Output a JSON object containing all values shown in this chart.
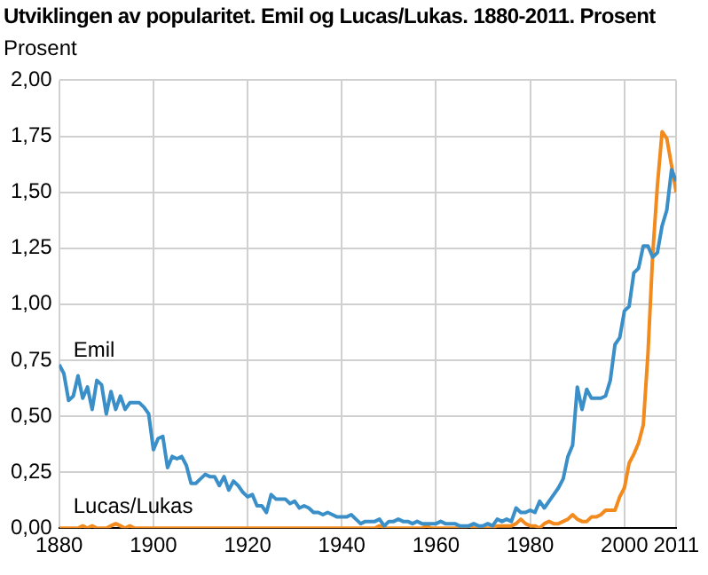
{
  "chart_data": {
    "type": "line",
    "title": "Utviklingen av popularitet. Emil og Lucas/Lukas. 1880-2011. Prosent",
    "ylabel": "Prosent",
    "x": [
      1880,
      1881,
      1882,
      1883,
      1884,
      1885,
      1886,
      1887,
      1888,
      1889,
      1890,
      1891,
      1892,
      1893,
      1894,
      1895,
      1896,
      1897,
      1898,
      1899,
      1900,
      1901,
      1902,
      1903,
      1904,
      1905,
      1906,
      1907,
      1908,
      1909,
      1910,
      1911,
      1912,
      1913,
      1914,
      1915,
      1916,
      1917,
      1918,
      1919,
      1920,
      1921,
      1922,
      1923,
      1924,
      1925,
      1926,
      1927,
      1928,
      1929,
      1930,
      1931,
      1932,
      1933,
      1934,
      1935,
      1936,
      1937,
      1938,
      1939,
      1940,
      1941,
      1942,
      1943,
      1944,
      1945,
      1946,
      1947,
      1948,
      1949,
      1950,
      1951,
      1952,
      1953,
      1954,
      1955,
      1956,
      1957,
      1958,
      1959,
      1960,
      1961,
      1962,
      1963,
      1964,
      1965,
      1966,
      1967,
      1968,
      1969,
      1970,
      1971,
      1972,
      1973,
      1974,
      1975,
      1976,
      1977,
      1978,
      1979,
      1980,
      1981,
      1982,
      1983,
      1984,
      1985,
      1986,
      1987,
      1988,
      1989,
      1990,
      1991,
      1992,
      1993,
      1994,
      1995,
      1996,
      1997,
      1998,
      1999,
      2000,
      2001,
      2002,
      2003,
      2004,
      2005,
      2006,
      2007,
      2008,
      2009,
      2010,
      2011
    ],
    "series": [
      {
        "name": "Emil",
        "color": "#3a8fc8",
        "values": [
          0.73,
          0.69,
          0.57,
          0.59,
          0.68,
          0.58,
          0.63,
          0.53,
          0.66,
          0.64,
          0.51,
          0.61,
          0.53,
          0.59,
          0.53,
          0.56,
          0.56,
          0.56,
          0.54,
          0.51,
          0.35,
          0.4,
          0.41,
          0.27,
          0.32,
          0.31,
          0.32,
          0.28,
          0.2,
          0.2,
          0.22,
          0.24,
          0.23,
          0.23,
          0.19,
          0.23,
          0.17,
          0.21,
          0.19,
          0.16,
          0.14,
          0.15,
          0.1,
          0.1,
          0.07,
          0.15,
          0.13,
          0.13,
          0.13,
          0.11,
          0.12,
          0.09,
          0.1,
          0.09,
          0.07,
          0.07,
          0.06,
          0.07,
          0.06,
          0.05,
          0.05,
          0.05,
          0.06,
          0.04,
          0.02,
          0.03,
          0.03,
          0.03,
          0.04,
          0.01,
          0.03,
          0.03,
          0.04,
          0.03,
          0.03,
          0.02,
          0.03,
          0.02,
          0.02,
          0.02,
          0.02,
          0.03,
          0.02,
          0.02,
          0.02,
          0.01,
          0.01,
          0.01,
          0.02,
          0.01,
          0.01,
          0.02,
          0.01,
          0.04,
          0.03,
          0.04,
          0.03,
          0.09,
          0.07,
          0.07,
          0.08,
          0.07,
          0.12,
          0.09,
          0.12,
          0.15,
          0.18,
          0.22,
          0.32,
          0.37,
          0.63,
          0.53,
          0.62,
          0.58,
          0.58,
          0.58,
          0.59,
          0.66,
          0.82,
          0.85,
          0.97,
          0.99,
          1.14,
          1.16,
          1.26,
          1.26,
          1.21,
          1.23,
          1.35,
          1.42,
          1.6,
          1.55
        ]
      },
      {
        "name": "Lucas/Lukas",
        "color": "#f28a1e",
        "values": [
          0,
          0,
          0,
          0,
          0,
          0.01,
          0,
          0.01,
          0,
          0,
          0,
          0.01,
          0.02,
          0.01,
          0,
          0.01,
          0,
          0,
          0,
          0,
          0,
          0,
          0,
          0,
          0,
          0,
          0,
          0,
          0,
          0,
          0,
          0,
          0,
          0,
          0,
          0,
          0,
          0,
          0,
          0,
          0,
          0,
          0,
          0,
          0,
          0,
          0,
          0,
          0,
          0,
          0,
          0,
          0,
          0,
          0,
          0,
          0,
          0,
          0,
          0,
          0,
          0,
          0,
          0,
          0,
          0,
          0,
          0,
          0.01,
          0,
          0,
          0,
          0,
          0,
          0,
          0,
          0,
          0,
          0.01,
          0,
          0,
          0,
          0,
          0,
          0,
          0,
          0,
          0.01,
          0,
          0,
          0,
          0,
          0,
          0.01,
          0.01,
          0.01,
          0.01,
          0.02,
          0.04,
          0.02,
          0.01,
          0.01,
          0,
          0.02,
          0.03,
          0.02,
          0.02,
          0.03,
          0.04,
          0.06,
          0.04,
          0.03,
          0.03,
          0.05,
          0.05,
          0.06,
          0.08,
          0.08,
          0.08,
          0.14,
          0.18,
          0.29,
          0.33,
          0.38,
          0.46,
          0.78,
          1.22,
          1.53,
          1.77,
          1.74,
          1.62,
          1.5
        ]
      }
    ],
    "xlim": [
      1880,
      2011
    ],
    "xticks": [
      1880,
      1900,
      1920,
      1940,
      1960,
      1980,
      2000,
      2011
    ],
    "ylim": [
      0,
      2
    ],
    "yticks": [
      {
        "value": 0,
        "label": "0,00"
      },
      {
        "value": 0.25,
        "label": "0,25"
      },
      {
        "value": 0.5,
        "label": "0,50"
      },
      {
        "value": 0.75,
        "label": "0,75"
      },
      {
        "value": 1,
        "label": "1,00"
      },
      {
        "value": 1.25,
        "label": "1,25"
      },
      {
        "value": 1.5,
        "label": "1,50"
      },
      {
        "value": 1.75,
        "label": "1,75"
      },
      {
        "value": 2,
        "label": "2,00"
      }
    ],
    "grid": true,
    "legend": false,
    "marker": "none",
    "line_style": "solid"
  }
}
